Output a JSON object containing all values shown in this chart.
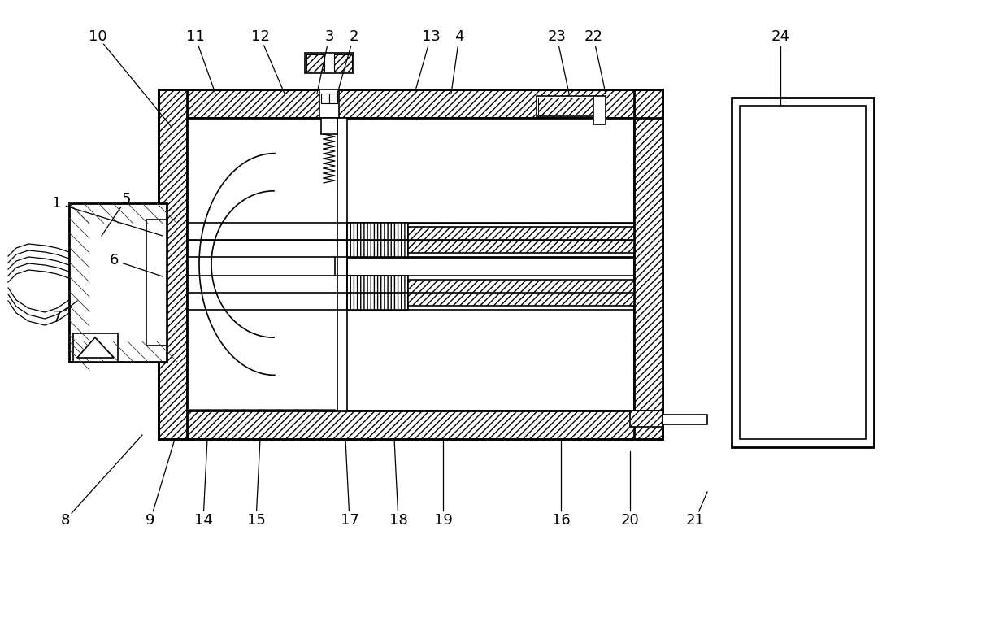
{
  "bg_color": "#ffffff",
  "lw": 1.2,
  "lw2": 2.0,
  "figsize": [
    12.4,
    7.65
  ],
  "dpi": 100
}
